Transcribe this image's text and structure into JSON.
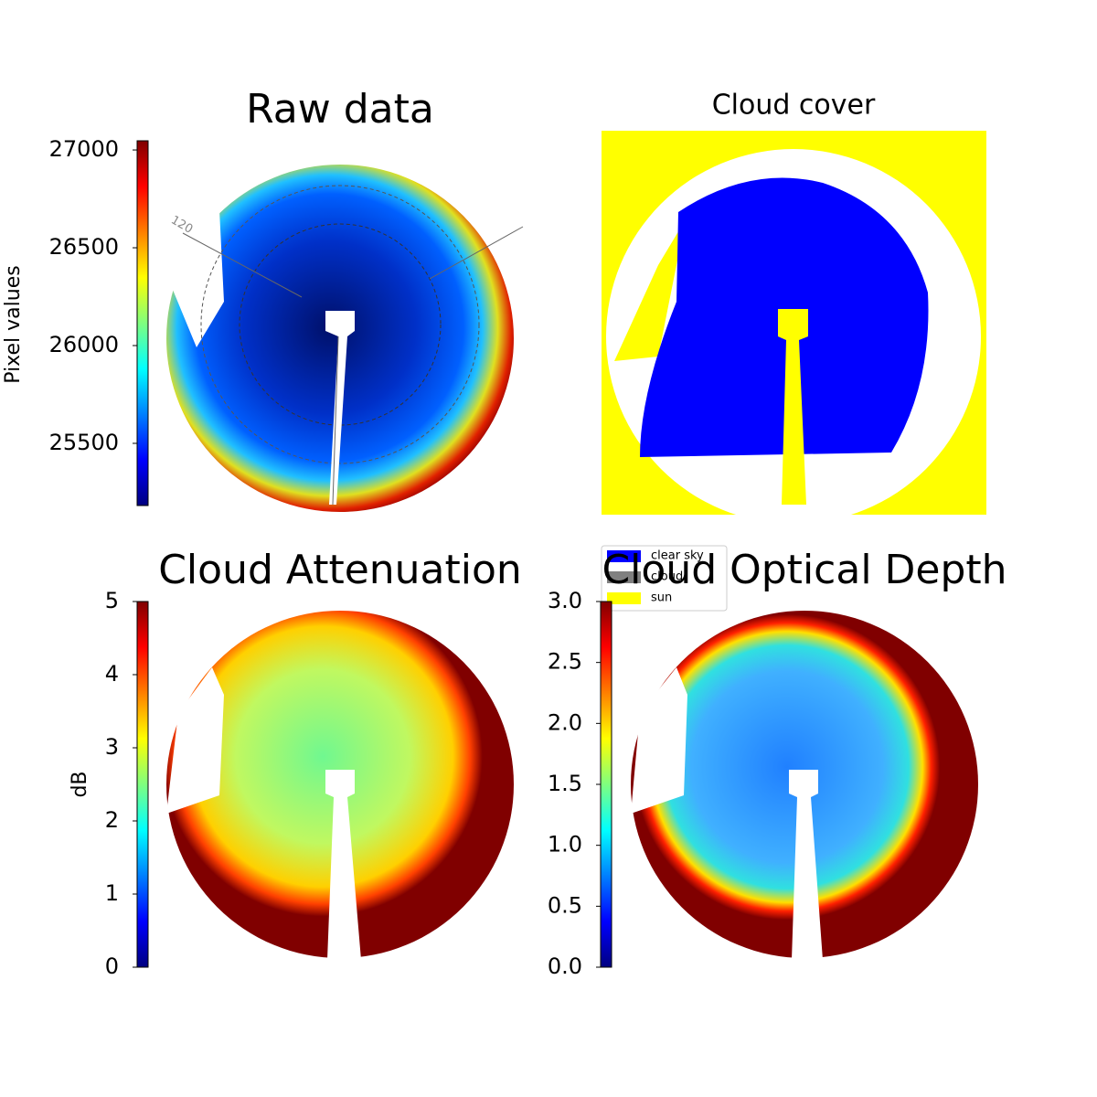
{
  "chart_data": [
    {
      "type": "image",
      "title": "Raw data",
      "colormap": "jet",
      "annotations": [
        "120"
      ],
      "colorbar": {
        "label": "Pixel values",
        "ylim": [
          25182,
          27047
        ],
        "yticks": [
          25500,
          26000,
          26500,
          27000
        ]
      }
    },
    {
      "type": "image",
      "title": "Cloud cover",
      "legend": [
        {
          "name": "clear sky",
          "color": "#0000ff"
        },
        {
          "name": "cloud",
          "color": "#808080"
        },
        {
          "name": "sun",
          "color": "#ffff00"
        }
      ]
    },
    {
      "type": "image",
      "title": "Cloud Attenuation",
      "colormap": "jet",
      "colorbar": {
        "label": "dB",
        "ylim": [
          0,
          5
        ],
        "yticks": [
          0,
          1,
          2,
          3,
          4,
          5
        ]
      }
    },
    {
      "type": "image",
      "title": "Cloud Optical Depth",
      "colormap": "jet",
      "colorbar": {
        "ylim": [
          0,
          3
        ],
        "yticks": [
          {
            "value": 0,
            "label": "0.0"
          },
          {
            "value": 0.5,
            "label": "0.5"
          },
          {
            "value": 1,
            "label": "1.0"
          },
          {
            "value": 1.5,
            "label": "1.5"
          },
          {
            "value": 2,
            "label": "2.0"
          },
          {
            "value": 2.5,
            "label": "2.5"
          },
          {
            "value": 3,
            "label": "3.0"
          }
        ]
      }
    }
  ]
}
